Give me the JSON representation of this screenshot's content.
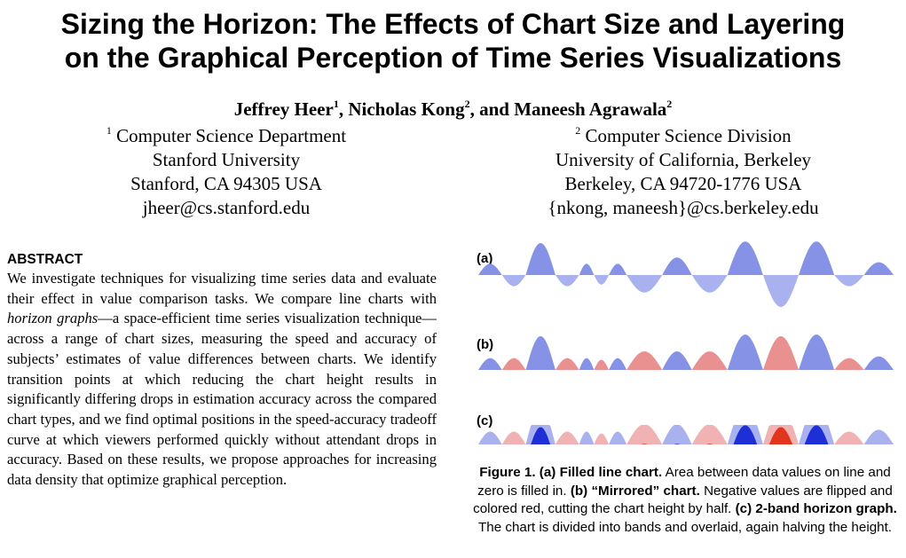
{
  "title": {
    "line1": "Sizing the Horizon: The Effects of Chart Size and Layering",
    "line2": "on the Graphical Perception of Time Series Visualizations"
  },
  "authors": [
    {
      "name": "Jeffrey Heer",
      "sup": "1",
      "sep": ", "
    },
    {
      "name": "Nicholas Kong",
      "sup": "2",
      "sep": ", and "
    },
    {
      "name": "Maneesh Agrawala",
      "sup": "2",
      "sep": ""
    }
  ],
  "affiliations": {
    "left": {
      "sup": "1",
      "lines": [
        "Computer Science Department",
        "Stanford University",
        "Stanford, CA 94305 USA",
        "jheer@cs.stanford.edu"
      ]
    },
    "right": {
      "sup": "2",
      "lines": [
        "Computer Science Division",
        "University of California, Berkeley",
        "Berkeley, CA 94720-1776 USA",
        "{nkong, maneesh}@cs.berkeley.edu"
      ]
    }
  },
  "abstract": {
    "heading": "ABSTRACT",
    "text_before_em": "We investigate techniques for visualizing time series data and evaluate their effect in value comparison tasks. We compare line charts with ",
    "em": "horizon graphs",
    "text_after_em": "—a space-efficient time series visualization technique—across a range of chart sizes, measuring the speed and accuracy of subjects’ estimates of value differences between charts. We identify transition points at which reducing the chart height results in significantly differing drops in estimation accuracy across the compared chart types, and we find optimal positions in the speed-accuracy tradeoff curve at which viewers performed quickly without attendant drops in accuracy. Based on these results, we propose approaches for increasing data density that optimize graphical perception."
  },
  "figure": {
    "panel_labels": [
      "(a)",
      "(b)",
      "(c)"
    ],
    "caption": {
      "fig_label": "Figure 1.",
      "a_title": "(a) Filled line chart.",
      "a_text": "Area between data values on line and zero is filled in.",
      "b_title": "(b) “Mirrored” chart.",
      "b_text": "Negative values are flipped and colored red, cutting the chart height by half.",
      "c_title": "(c) 2-band horizon graph.",
      "c_text": "The chart is divided into bands and overlaid, again halving the height."
    },
    "colors": {
      "pos_light": "#a9b2ef",
      "pos_mid": "#8592e6",
      "pos_dark": "#1f2fd6",
      "neg_light": "#f0b2b2",
      "neg_mid": "#e99191",
      "neg_dark": "#e2351d"
    }
  },
  "chart_data": {
    "type": "area",
    "title": "",
    "xlabel": "",
    "ylabel": "",
    "description": "Synthetic oscillating series shown as (a) filled line, (b) mirrored, (c) 2-band horizon graph",
    "bumps": [
      {
        "x_start": 0.0,
        "x_end": 4.0,
        "value": 0.35
      },
      {
        "x_start": 4.0,
        "x_end": 8.0,
        "value": -0.35
      },
      {
        "x_start": 8.0,
        "x_end": 13.0,
        "value": 1.0
      },
      {
        "x_start": 13.0,
        "x_end": 17.0,
        "value": -0.35
      },
      {
        "x_start": 17.0,
        "x_end": 19.5,
        "value": 0.35
      },
      {
        "x_start": 19.5,
        "x_end": 22.0,
        "value": -0.3
      },
      {
        "x_start": 22.0,
        "x_end": 25.0,
        "value": 0.35
      },
      {
        "x_start": 25.0,
        "x_end": 31.0,
        "value": -0.55
      },
      {
        "x_start": 31.0,
        "x_end": 36.0,
        "value": 0.55
      },
      {
        "x_start": 36.0,
        "x_end": 42.0,
        "value": -0.55
      },
      {
        "x_start": 42.0,
        "x_end": 48.0,
        "value": 1.05
      },
      {
        "x_start": 48.0,
        "x_end": 54.0,
        "value": -1.0
      },
      {
        "x_start": 54.0,
        "x_end": 60.0,
        "value": 1.05
      },
      {
        "x_start": 60.0,
        "x_end": 65.0,
        "value": -0.35
      },
      {
        "x_start": 65.0,
        "x_end": 70.0,
        "value": 0.4
      }
    ],
    "x_range": [
      0,
      70
    ],
    "y_range": [
      -1.05,
      1.05
    ],
    "horizon_bands": 2
  }
}
